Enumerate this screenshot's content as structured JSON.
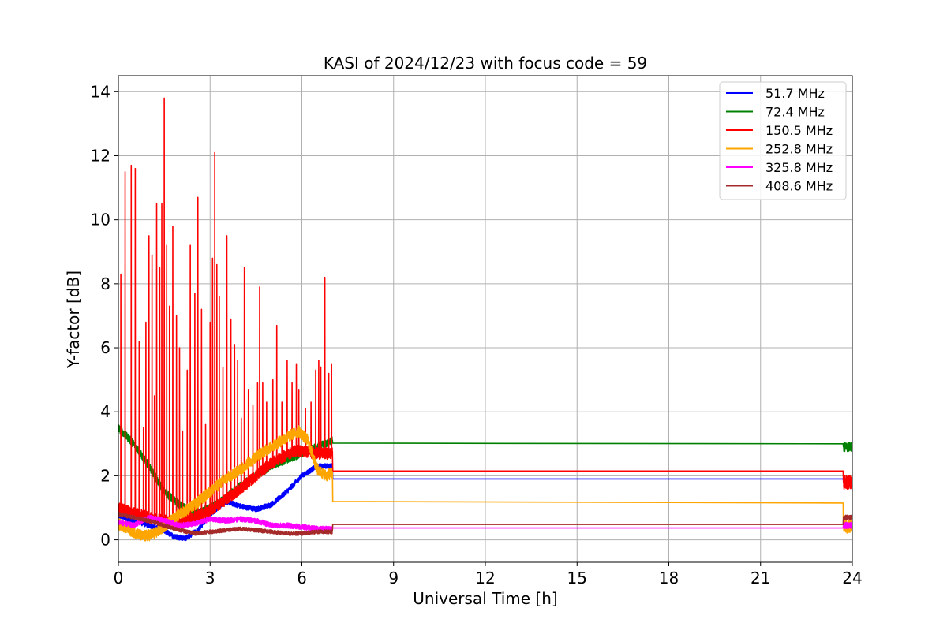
{
  "chart_data": {
    "type": "line",
    "title": "KASI of 2024/12/23 with focus code = 59",
    "xlabel": "Universal Time [h]",
    "ylabel": "Y-factor [dB]",
    "xlim": [
      0,
      24
    ],
    "ylim": [
      -0.7,
      14.5
    ],
    "xticks": [
      0,
      3,
      6,
      9,
      12,
      15,
      18,
      21,
      24
    ],
    "yticks": [
      0,
      2,
      4,
      6,
      8,
      10,
      12,
      14
    ],
    "grid": true,
    "legend_position": "upper-right",
    "series": [
      {
        "name": " 51.7 MHz",
        "color": "#0000ff",
        "points": [
          [
            0,
            0.75
          ],
          [
            0.5,
            0.6
          ],
          [
            1.0,
            0.45
          ],
          [
            1.5,
            0.3
          ],
          [
            1.8,
            0.1
          ],
          [
            2.2,
            0.05
          ],
          [
            2.6,
            0.3
          ],
          [
            3.0,
            0.8
          ],
          [
            3.5,
            1.2
          ],
          [
            4.0,
            1.05
          ],
          [
            4.5,
            0.95
          ],
          [
            5.0,
            1.1
          ],
          [
            5.5,
            1.5
          ],
          [
            6.0,
            2.0
          ],
          [
            6.5,
            2.3
          ],
          [
            7.0,
            2.3
          ],
          [
            7.01,
            1.9
          ],
          [
            23.7,
            1.9
          ],
          [
            23.71,
            1.85
          ],
          [
            24,
            1.85
          ]
        ],
        "noise": 0.08
      },
      {
        "name": " 72.4 MHz",
        "color": "#008000",
        "points": [
          [
            0,
            3.5
          ],
          [
            0.5,
            3.0
          ],
          [
            1.0,
            2.3
          ],
          [
            1.5,
            1.5
          ],
          [
            2.0,
            1.1
          ],
          [
            2.5,
            0.8
          ],
          [
            3.0,
            1.0
          ],
          [
            3.5,
            1.3
          ],
          [
            4.0,
            1.7
          ],
          [
            4.5,
            2.0
          ],
          [
            5.0,
            2.3
          ],
          [
            5.5,
            2.5
          ],
          [
            6.0,
            2.7
          ],
          [
            6.5,
            2.9
          ],
          [
            7.0,
            3.1
          ],
          [
            7.01,
            3.02
          ],
          [
            23.7,
            3.0
          ],
          [
            23.71,
            2.9
          ],
          [
            24,
            2.9
          ]
        ],
        "noise": 0.12
      },
      {
        "name": " 150.5 MHz",
        "color": "#ff0000",
        "points": [
          [
            0,
            1.0
          ],
          [
            1.0,
            0.7
          ],
          [
            2.0,
            0.5
          ],
          [
            3.0,
            0.9
          ],
          [
            4.0,
            1.6
          ],
          [
            5.0,
            2.4
          ],
          [
            5.8,
            2.8
          ],
          [
            6.5,
            2.7
          ],
          [
            7.0,
            2.7
          ],
          [
            7.01,
            2.15
          ],
          [
            23.7,
            2.15
          ],
          [
            23.71,
            1.8
          ],
          [
            24,
            1.8
          ]
        ],
        "noise": 0.18,
        "spikes": [
          [
            0.08,
            8.3
          ],
          [
            0.22,
            11.5
          ],
          [
            0.42,
            11.7
          ],
          [
            0.55,
            11.6
          ],
          [
            0.68,
            6.2
          ],
          [
            0.82,
            3.5
          ],
          [
            0.9,
            6.8
          ],
          [
            1.0,
            9.5
          ],
          [
            1.1,
            8.9
          ],
          [
            1.18,
            4.5
          ],
          [
            1.25,
            10.5
          ],
          [
            1.35,
            8.5
          ],
          [
            1.42,
            10.5
          ],
          [
            1.5,
            13.8
          ],
          [
            1.58,
            9.2
          ],
          [
            1.67,
            7.3
          ],
          [
            1.78,
            9.8
          ],
          [
            1.9,
            7.0
          ],
          [
            2.0,
            6.0
          ],
          [
            2.1,
            3.4
          ],
          [
            2.25,
            5.3
          ],
          [
            2.35,
            9.2
          ],
          [
            2.5,
            7.7
          ],
          [
            2.6,
            10.7
          ],
          [
            2.72,
            7.2
          ],
          [
            2.85,
            3.6
          ],
          [
            3.0,
            6.8
          ],
          [
            3.08,
            8.8
          ],
          [
            3.15,
            12.1
          ],
          [
            3.22,
            8.6
          ],
          [
            3.3,
            7.6
          ],
          [
            3.42,
            5.4
          ],
          [
            3.55,
            9.5
          ],
          [
            3.68,
            6.9
          ],
          [
            3.8,
            6.1
          ],
          [
            3.9,
            5.6
          ],
          [
            4.02,
            3.8
          ],
          [
            4.12,
            8.5
          ],
          [
            4.25,
            4.7
          ],
          [
            4.4,
            4.2
          ],
          [
            4.55,
            4.9
          ],
          [
            4.62,
            7.9
          ],
          [
            4.72,
            4.9
          ],
          [
            4.85,
            4.3
          ],
          [
            5.05,
            5.0
          ],
          [
            5.18,
            6.7
          ],
          [
            5.35,
            4.3
          ],
          [
            5.52,
            5.6
          ],
          [
            5.68,
            4.9
          ],
          [
            5.82,
            5.5
          ],
          [
            5.9,
            4.7
          ],
          [
            6.12,
            4.1
          ],
          [
            6.3,
            4.3
          ],
          [
            6.45,
            5.3
          ],
          [
            6.55,
            5.6
          ],
          [
            6.62,
            5.4
          ],
          [
            6.75,
            8.2
          ],
          [
            6.88,
            5.2
          ],
          [
            6.97,
            5.5
          ]
        ]
      },
      {
        "name": " 252.8 MHz",
        "color": "#ffa500",
        "points": [
          [
            0,
            0.5
          ],
          [
            0.4,
            0.3
          ],
          [
            0.8,
            0.1
          ],
          [
            1.2,
            0.2
          ],
          [
            1.6,
            0.5
          ],
          [
            2.0,
            0.8
          ],
          [
            2.5,
            1.1
          ],
          [
            3.0,
            1.5
          ],
          [
            3.5,
            1.9
          ],
          [
            4.0,
            2.2
          ],
          [
            4.5,
            2.6
          ],
          [
            5.0,
            2.9
          ],
          [
            5.5,
            3.2
          ],
          [
            5.9,
            3.4
          ],
          [
            6.2,
            3.1
          ],
          [
            6.5,
            2.2
          ],
          [
            6.8,
            2.0
          ],
          [
            7.0,
            2.1
          ],
          [
            7.01,
            1.2
          ],
          [
            23.7,
            1.15
          ],
          [
            23.71,
            0.4
          ],
          [
            24,
            0.45
          ]
        ],
        "noise": 0.18
      },
      {
        "name": " 325.8 MHz",
        "color": "#ff00ff",
        "points": [
          [
            0,
            0.55
          ],
          [
            0.5,
            0.45
          ],
          [
            1.0,
            0.7
          ],
          [
            1.5,
            0.6
          ],
          [
            2.0,
            0.45
          ],
          [
            2.5,
            0.5
          ],
          [
            3.0,
            0.65
          ],
          [
            3.5,
            0.6
          ],
          [
            4.0,
            0.65
          ],
          [
            4.5,
            0.6
          ],
          [
            5.0,
            0.45
          ],
          [
            5.5,
            0.45
          ],
          [
            6.0,
            0.4
          ],
          [
            6.5,
            0.35
          ],
          [
            7.0,
            0.35
          ],
          [
            7.01,
            0.37
          ],
          [
            23.7,
            0.37
          ],
          [
            23.71,
            0.45
          ],
          [
            24,
            0.45
          ]
        ],
        "noise": 0.08
      },
      {
        "name": " 408.6 MHz",
        "color": "#a52a2a",
        "points": [
          [
            0,
            0.8
          ],
          [
            0.5,
            0.7
          ],
          [
            1.0,
            0.6
          ],
          [
            1.5,
            0.45
          ],
          [
            2.0,
            0.3
          ],
          [
            2.5,
            0.2
          ],
          [
            3.0,
            0.25
          ],
          [
            3.5,
            0.3
          ],
          [
            4.0,
            0.35
          ],
          [
            4.5,
            0.3
          ],
          [
            5.0,
            0.25
          ],
          [
            5.5,
            0.2
          ],
          [
            6.0,
            0.2
          ],
          [
            6.5,
            0.25
          ],
          [
            7.0,
            0.25
          ],
          [
            7.01,
            0.48
          ],
          [
            23.7,
            0.48
          ],
          [
            23.71,
            0.7
          ],
          [
            24,
            0.7
          ]
        ],
        "noise": 0.06
      }
    ]
  }
}
